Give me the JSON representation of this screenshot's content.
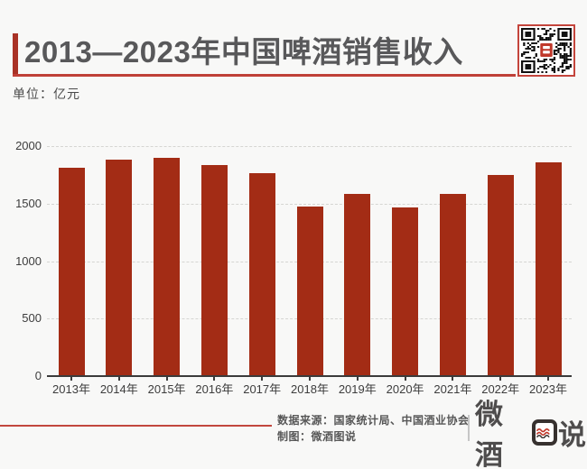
{
  "header": {
    "title": "2013—2023年中国啤酒销售收入",
    "unit_label": "单位：亿元"
  },
  "chart_data": {
    "type": "bar",
    "title": "2013—2023年中国啤酒销售收入",
    "unit": "亿元",
    "categories": [
      "2013年",
      "2014年",
      "2015年",
      "2016年",
      "2017年",
      "2018年",
      "2019年",
      "2020年",
      "2021年",
      "2022年",
      "2023年"
    ],
    "values": [
      1814,
      1886,
      1897,
      1833,
      1766,
      1472,
      1582,
      1469,
      1585,
      1751,
      1863
    ],
    "xlabel": "",
    "ylabel": "",
    "ylim": [
      0,
      2000
    ],
    "yticks": [
      0,
      500,
      1000,
      1500,
      2000
    ],
    "grid": "horizontal-dashed",
    "legend": "none",
    "bar_color": "#a32c15"
  },
  "footer": {
    "source_label": "数据来源：国家统计局、中国酒业协会",
    "credit_label": "制图：微酒图说",
    "logo_text": "微酒图说",
    "logo_prefix": "微酒",
    "logo_suffix": "说"
  },
  "colors": {
    "background": "#f8f8f7",
    "accent_red": "#a93226",
    "underline_red": "#bf4038",
    "bar_red": "#a32c15",
    "title_gray": "#58585a",
    "axis_gray": "#3b3b3b",
    "qr_border_red": "#c4453c"
  }
}
